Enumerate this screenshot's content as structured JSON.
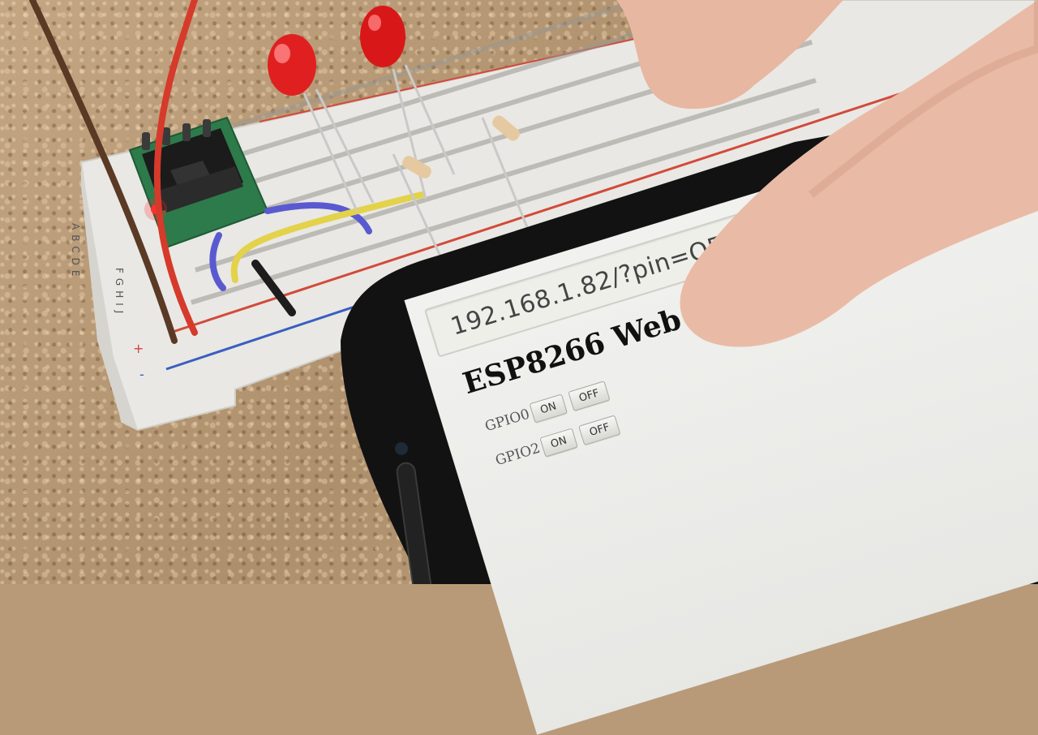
{
  "breadboard": {
    "row_letters_left": "ABCDE",
    "row_letters_right": "FGHIJ",
    "plus_label": "+",
    "minus_label": "-"
  },
  "phone": {
    "url": "192.168.1.82/?pin=OFF2",
    "page_title": "ESP8266 Web Server",
    "gpio_rows": [
      {
        "label": "GPIO0",
        "on_label": "ON",
        "off_label": "OFF"
      },
      {
        "label": "GPIO2",
        "on_label": "ON",
        "off_label": "OFF"
      }
    ]
  },
  "colors": {
    "led_red": "#e02020",
    "wire_red": "#d63a2a",
    "wire_blue": "#5a5ad0",
    "wire_yellow": "#e3d24a",
    "wire_black": "#1d1d1d",
    "esp_board": "#2d7a4a",
    "phone_body": "#121212",
    "skin": "#e9bba6"
  }
}
